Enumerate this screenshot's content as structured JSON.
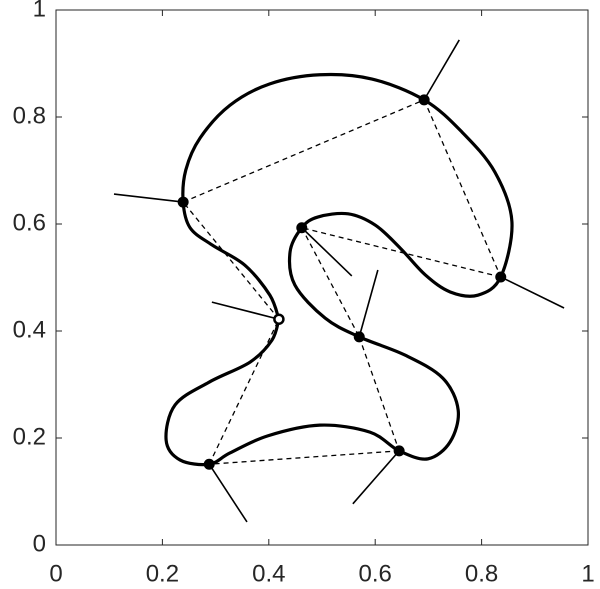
{
  "chart_data": {
    "type": "line",
    "color": "#000000",
    "xlim": [
      0,
      1
    ],
    "ylim": [
      0,
      1
    ],
    "xticks": [
      0,
      0.2,
      0.4,
      0.6,
      0.8,
      1
    ],
    "yticks": [
      0,
      0.2,
      0.4,
      0.6,
      0.8,
      1
    ],
    "curve": {
      "x": [
        0.419,
        0.402,
        0.355,
        0.293,
        0.252,
        0.239,
        0.244,
        0.271,
        0.327,
        0.402,
        0.496,
        0.594,
        0.692,
        0.763,
        0.825,
        0.857,
        0.836,
        0.793,
        0.741,
        0.694,
        0.647,
        0.6,
        0.549,
        0.492,
        0.462,
        0.44,
        0.449,
        0.506,
        0.57,
        0.656,
        0.727,
        0.756,
        0.741,
        0.699,
        0.645,
        0.59,
        0.496,
        0.398,
        0.327,
        0.288,
        0.233,
        0.207,
        0.224,
        0.289,
        0.365,
        0.406,
        0.419
      ],
      "y": [
        0.422,
        0.467,
        0.523,
        0.561,
        0.593,
        0.641,
        0.701,
        0.761,
        0.822,
        0.862,
        0.879,
        0.871,
        0.832,
        0.772,
        0.697,
        0.604,
        0.501,
        0.467,
        0.473,
        0.505,
        0.555,
        0.598,
        0.619,
        0.613,
        0.593,
        0.548,
        0.486,
        0.424,
        0.389,
        0.355,
        0.312,
        0.252,
        0.193,
        0.161,
        0.176,
        0.211,
        0.224,
        0.204,
        0.172,
        0.151,
        0.159,
        0.196,
        0.262,
        0.305,
        0.342,
        0.383,
        0.422
      ]
    },
    "nodes": {
      "x": [
        0.419,
        0.239,
        0.692,
        0.836,
        0.462,
        0.57,
        0.645,
        0.288
      ],
      "y": [
        0.422,
        0.641,
        0.832,
        0.501,
        0.593,
        0.389,
        0.176,
        0.151
      ],
      "hollow": [
        true,
        false,
        false,
        false,
        false,
        false,
        false,
        false
      ]
    },
    "normal_ends": {
      "x": [
        0.293,
        0.109,
        0.758,
        0.955,
        0.556,
        0.605,
        0.558,
        0.359
      ],
      "y": [
        0.454,
        0.656,
        0.944,
        0.443,
        0.503,
        0.514,
        0.077,
        0.043
      ]
    }
  }
}
